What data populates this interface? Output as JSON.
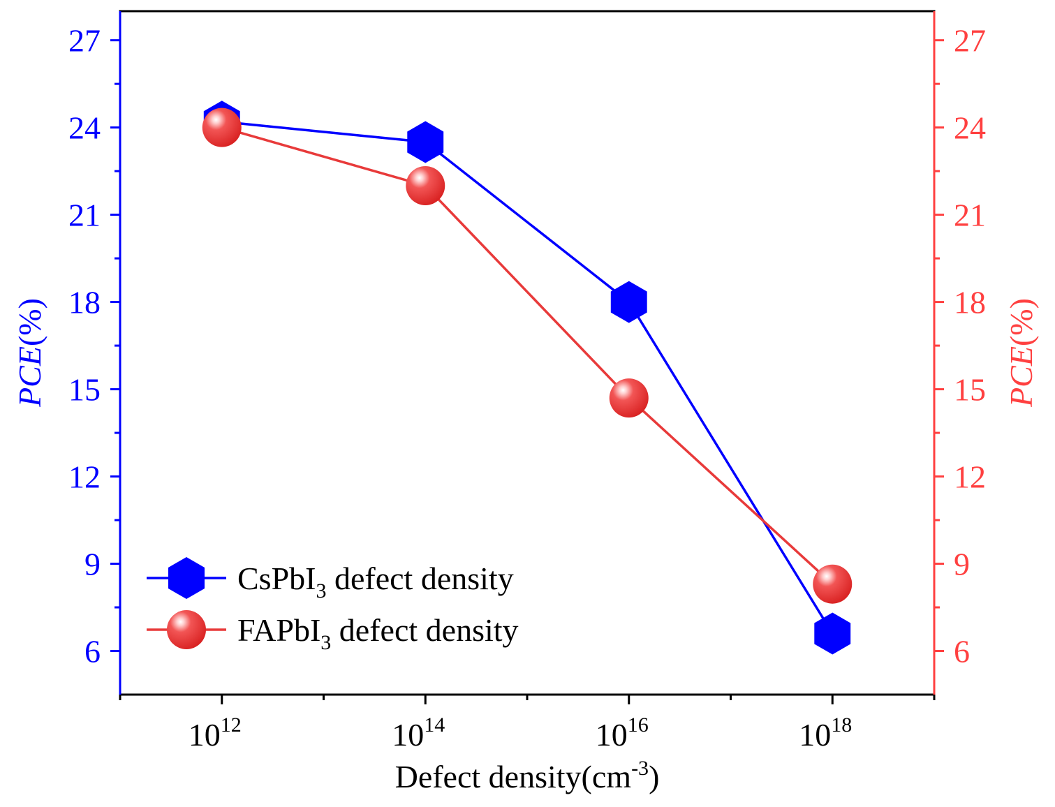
{
  "chart_data": {
    "type": "line",
    "x_axis": {
      "label_base": "Defect density(cm",
      "label_exp": "-3",
      "label_close": ")",
      "scale": "log10",
      "range_exp": [
        11,
        19
      ],
      "ticks": [
        {
          "base": "10",
          "exp": "12",
          "value_exp": 12
        },
        {
          "base": "10",
          "exp": "14",
          "value_exp": 14
        },
        {
          "base": "10",
          "exp": "16",
          "value_exp": 16
        },
        {
          "base": "10",
          "exp": "18",
          "value_exp": 18
        }
      ]
    },
    "y_left": {
      "label_italic": "PCE",
      "label_rest": "(%)",
      "color": "#0000ff",
      "range": [
        4.5,
        28
      ],
      "ticks": [
        "6",
        "9",
        "12",
        "15",
        "18",
        "21",
        "24",
        "27"
      ]
    },
    "y_right": {
      "label_italic": "PCE",
      "label_rest": "(%)",
      "color": "#ff4040",
      "range": [
        4.5,
        28
      ],
      "ticks": [
        "6",
        "9",
        "12",
        "15",
        "18",
        "21",
        "24",
        "27"
      ]
    },
    "series": [
      {
        "name": "CsPbI3 defect density",
        "legend_prefix": "CsPbI",
        "legend_sub": "3",
        "legend_suffix": " defect density",
        "color": "#0000ff",
        "marker": "hexagon",
        "x_exp": [
          12,
          14,
          16,
          18
        ],
        "values": [
          24.2,
          23.5,
          18.0,
          6.6
        ]
      },
      {
        "name": "FAPbI3 defect density",
        "legend_prefix": "FAPbI",
        "legend_sub": "3",
        "legend_suffix": " defect density",
        "color": "#e83a3a",
        "marker": "sphere",
        "x_exp": [
          12,
          14,
          16,
          18
        ],
        "values": [
          24.0,
          22.0,
          14.7,
          8.3
        ]
      }
    ]
  }
}
